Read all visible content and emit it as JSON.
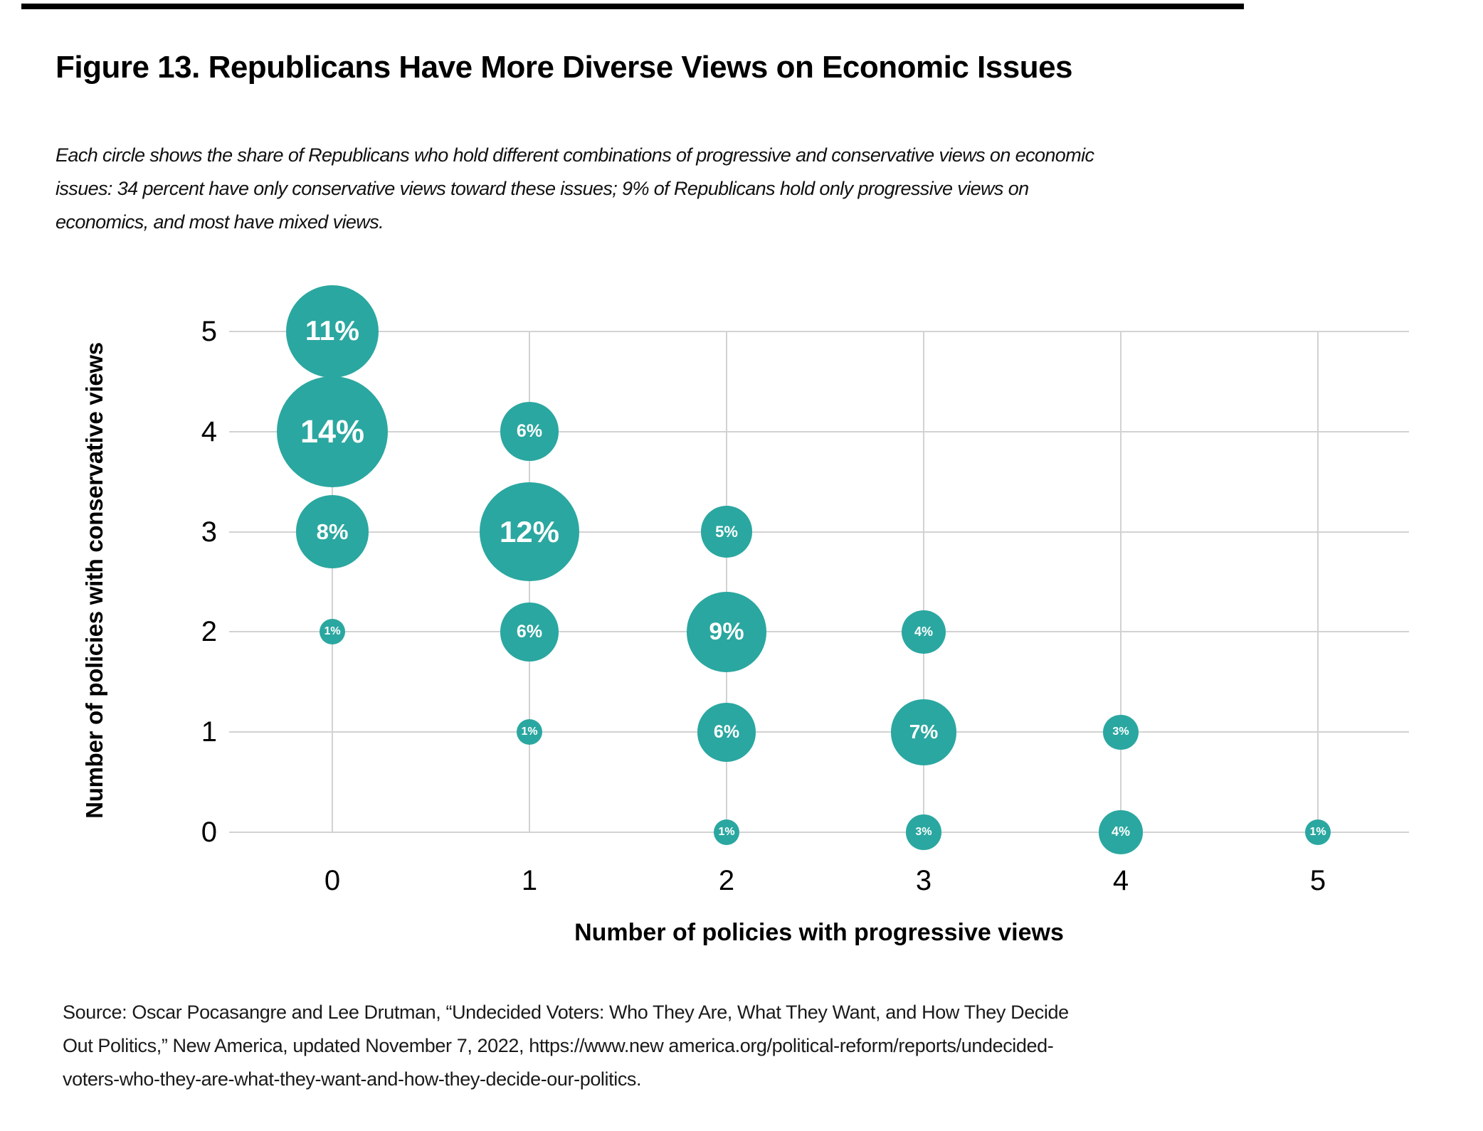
{
  "figure": {
    "title": "Figure 13. Republicans Have More Diverse Views on Economic Issues",
    "subtitle_lines": [
      "Each circle shows the share of Republicans who hold different combinations of progressive and conservative views on economic",
      "issues: 34 percent have only conservative views toward these issues; 9% of Republicans hold only progressive views on",
      "economics, and most have mixed views."
    ],
    "source_lines": [
      "Source: Oscar Pocasangre and Lee Drutman, “Undecided Voters: Who They Are, What They Want, and How They Decide",
      "Out Politics,” New America, updated November 7, 2022, https://www.new america.org/political-reform/reports/undecided-",
      "voters-who-they-are-what-they-want-and-how-they-decide-our-politics."
    ]
  },
  "chart_data": {
    "type": "scatter",
    "subtype": "bubble",
    "title": "",
    "xlabel": "Number of policies with progressive views",
    "ylabel": "Number of policies with conservative views",
    "x_ticks": [
      "0",
      "1",
      "2",
      "3",
      "4",
      "5"
    ],
    "y_ticks": [
      "5",
      "4",
      "3",
      "2",
      "1",
      "0"
    ],
    "xlim": [
      -0.5,
      5.5
    ],
    "ylim": [
      -0.5,
      5.5
    ],
    "grid": "on",
    "bubble_color": "#2AA7A0",
    "bubble_label_color": "#ffffff",
    "gridline_color": "#d2d2d2",
    "points": [
      {
        "x": 0,
        "y": 5,
        "value": 11,
        "label": "11%"
      },
      {
        "x": 0,
        "y": 4,
        "value": 14,
        "label": "14%"
      },
      {
        "x": 0,
        "y": 3,
        "value": 8,
        "label": "8%"
      },
      {
        "x": 0,
        "y": 2,
        "value": 1,
        "label": "1%"
      },
      {
        "x": 1,
        "y": 4,
        "value": 6,
        "label": "6%"
      },
      {
        "x": 1,
        "y": 3,
        "value": 12,
        "label": "12%"
      },
      {
        "x": 1,
        "y": 2,
        "value": 6,
        "label": "6%"
      },
      {
        "x": 1,
        "y": 1,
        "value": 1,
        "label": "1%"
      },
      {
        "x": 2,
        "y": 3,
        "value": 5,
        "label": "5%"
      },
      {
        "x": 2,
        "y": 2,
        "value": 9,
        "label": "9%"
      },
      {
        "x": 2,
        "y": 1,
        "value": 6,
        "label": "6%"
      },
      {
        "x": 2,
        "y": 0,
        "value": 1,
        "label": "1%"
      },
      {
        "x": 3,
        "y": 2,
        "value": 4,
        "label": "4%"
      },
      {
        "x": 3,
        "y": 1,
        "value": 7,
        "label": "7%"
      },
      {
        "x": 3,
        "y": 0,
        "value": 3,
        "label": "3%"
      },
      {
        "x": 4,
        "y": 1,
        "value": 3,
        "label": "3%"
      },
      {
        "x": 4,
        "y": 0,
        "value": 4,
        "label": "4%"
      },
      {
        "x": 5,
        "y": 0,
        "value": 1,
        "label": "1%"
      }
    ]
  }
}
